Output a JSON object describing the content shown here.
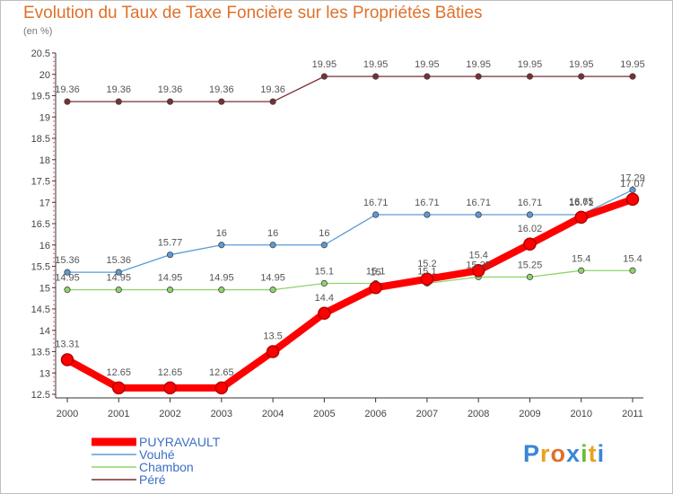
{
  "header": {
    "title": "Evolution du Taux de Taxe Foncière sur les Propriétés Bâties",
    "unit": "(en %)"
  },
  "logo": {
    "text": "Proxiti",
    "letters": [
      "P",
      "r",
      "o",
      "x",
      "i",
      "t",
      "i"
    ],
    "letter_colors": [
      "#3a86d4",
      "#e8a21d",
      "#e0702a",
      "#3a86d4",
      "#6cbb35",
      "#e8a21d",
      "#3a86d4"
    ]
  },
  "chart_data": {
    "type": "line",
    "title": "Evolution du Taux de Taxe Foncière sur les Propriétés Bâties",
    "ylabel": "(en %)",
    "xlabel": "",
    "ylim": [
      12.5,
      20.5
    ],
    "y_ticks": [
      "12.5",
      "13",
      "13.5",
      "14",
      "14.5",
      "15",
      "15.5",
      "16",
      "16.5",
      "17",
      "17.5",
      "18",
      "18.5",
      "19",
      "19.5",
      "20",
      "20.5"
    ],
    "categories": [
      "2000",
      "2001",
      "2002",
      "2003",
      "2004",
      "2005",
      "2006",
      "2007",
      "2008",
      "2009",
      "2010",
      "2011"
    ],
    "legend_position": "bottom-left",
    "grid": false,
    "series": [
      {
        "name": "Péré",
        "color": "#7a2f33",
        "values": [
          19.36,
          19.36,
          19.36,
          19.36,
          19.36,
          19.95,
          19.95,
          19.95,
          19.95,
          19.95,
          19.95,
          19.95
        ],
        "labels": [
          "19.36",
          "19.36",
          "19.36",
          "19.36",
          "19.36",
          "19.95",
          "19.95",
          "19.95",
          "19.95",
          "19.95",
          "19.95",
          "19.95"
        ]
      },
      {
        "name": "Vouhé",
        "color": "#5b9bd5",
        "values": [
          15.36,
          15.36,
          15.77,
          16,
          16,
          16,
          16.71,
          16.71,
          16.71,
          16.71,
          16.71,
          17.29
        ],
        "labels": [
          "15.36",
          "15.36",
          "15.77",
          "16",
          "16",
          "16",
          "16.71",
          "16.71",
          "16.71",
          "16.71",
          "16.71",
          "17.29"
        ]
      },
      {
        "name": "Chambon",
        "color": "#8fd46a",
        "values": [
          14.95,
          14.95,
          14.95,
          14.95,
          14.95,
          15.1,
          15.1,
          15.1,
          15.25,
          15.25,
          15.4,
          15.4
        ],
        "labels": [
          "14.95",
          "14.95",
          "14.95",
          "14.95",
          "14.95",
          "15.1",
          "15.1",
          "15.1",
          "15.25",
          "15.25",
          "15.4",
          "15.4"
        ]
      },
      {
        "name": "PUYRAVAULT",
        "color": "#ff0000",
        "values": [
          13.31,
          12.65,
          12.65,
          12.65,
          13.5,
          14.4,
          15,
          15.2,
          15.4,
          16.02,
          16.65,
          17.07
        ],
        "labels": [
          "13.31",
          "12.65",
          "12.65",
          "12.65",
          "13.5",
          "14.4",
          "15",
          "15.2",
          "15.4",
          "16.02",
          "16.65",
          "17.07"
        ]
      }
    ],
    "legend_order": [
      "PUYRAVAULT",
      "Vouhé",
      "Chambon",
      "Péré"
    ]
  }
}
